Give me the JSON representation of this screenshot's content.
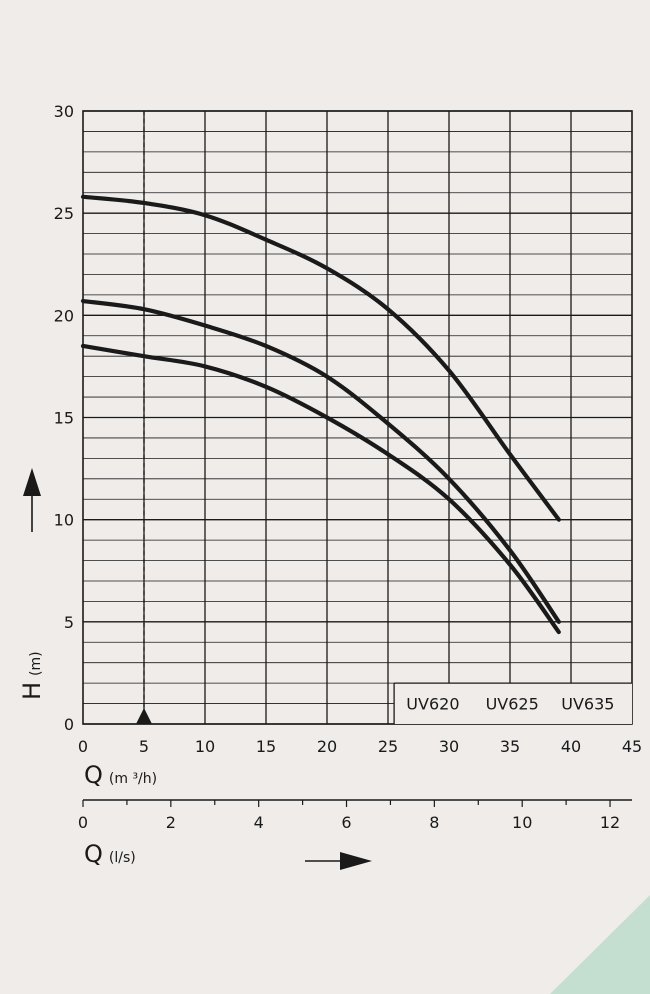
{
  "chart_data": {
    "type": "line",
    "y_axis": {
      "letter": "H",
      "unit": "(m)",
      "ticks": [
        "0",
        "5",
        "10",
        "15",
        "20",
        "25",
        "30"
      ],
      "ylim": [
        0,
        30
      ],
      "minor_step": 1
    },
    "x_axis_flow_m3h": {
      "letter": "Q",
      "unit": "(m ³/h)",
      "ticks": [
        "0",
        "5",
        "10",
        "15",
        "20",
        "25",
        "30",
        "35",
        "40",
        "45"
      ],
      "xlim": [
        0,
        45
      ]
    },
    "x_axis_flow_ls": {
      "letter": "Q",
      "unit": "(l/s)",
      "ticks": [
        "0",
        "2",
        "4",
        "6",
        "8",
        "10",
        "12"
      ],
      "xlim": [
        0,
        12.5
      ]
    },
    "grid": true,
    "marker": {
      "x": 5,
      "style": "dashed-line-with-triangle"
    },
    "legend": {
      "placement": "bottom-right",
      "entries": [
        "UV620",
        "UV625",
        "UV635"
      ]
    },
    "series": [
      {
        "name": "UV620",
        "points": [
          [
            0,
            18.5
          ],
          [
            5,
            18
          ],
          [
            10,
            17.5
          ],
          [
            15,
            16.5
          ],
          [
            20,
            15
          ],
          [
            25,
            13.2
          ],
          [
            30,
            11
          ],
          [
            35,
            7.8
          ],
          [
            39,
            4.5
          ]
        ]
      },
      {
        "name": "UV625",
        "points": [
          [
            0,
            20.7
          ],
          [
            5,
            20.3
          ],
          [
            10,
            19.5
          ],
          [
            15,
            18.5
          ],
          [
            20,
            17
          ],
          [
            25,
            14.7
          ],
          [
            30,
            12
          ],
          [
            35,
            8.5
          ],
          [
            39,
            5
          ]
        ]
      },
      {
        "name": "UV635",
        "points": [
          [
            0,
            25.8
          ],
          [
            5,
            25.5
          ],
          [
            10,
            24.9
          ],
          [
            15,
            23.7
          ],
          [
            20,
            22.3
          ],
          [
            25,
            20.3
          ],
          [
            30,
            17.3
          ],
          [
            35,
            13.2
          ],
          [
            39,
            10
          ]
        ]
      }
    ]
  },
  "colors": {
    "background": "#efecea",
    "ink": "#1a1a1a",
    "corner_accent": "#c4dfcf"
  }
}
